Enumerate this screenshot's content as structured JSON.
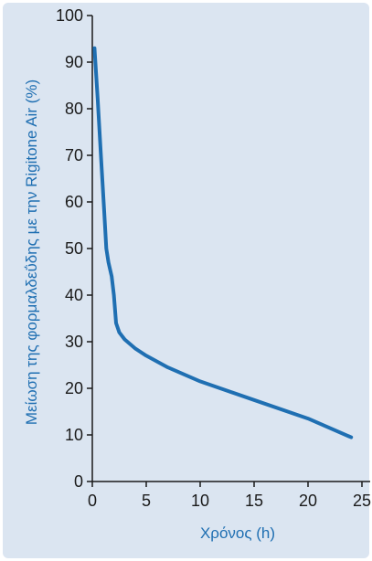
{
  "chart_data": {
    "type": "line",
    "title": "",
    "xlabel": "Χρόνος (h)",
    "ylabel": "Μείωση της φορμαλδεΰδης με την Rigitone Air (%)",
    "xlim": [
      0,
      25
    ],
    "ylim": [
      0,
      100
    ],
    "x_ticks": [
      "0",
      "5",
      "10",
      "15",
      "20",
      "25"
    ],
    "y_ticks": [
      "0",
      "10",
      "20",
      "30",
      "40",
      "50",
      "60",
      "70",
      "80",
      "90",
      "100"
    ],
    "grid": false,
    "legend": "none",
    "line_color": "#1f6fb2",
    "series": [
      {
        "x": [
          0.2,
          0.5,
          0.8,
          1.1,
          1.3,
          1.5,
          1.8,
          2.0,
          2.2,
          2.5,
          3.0,
          4.0,
          5.0,
          7.0,
          10.0,
          15.0,
          20.0,
          24.0
        ],
        "values": [
          93,
          82,
          70,
          58,
          50,
          47,
          44,
          40,
          34,
          32,
          30.5,
          28.5,
          27,
          24.5,
          21.5,
          17.5,
          13.5,
          9.5
        ]
      }
    ]
  }
}
